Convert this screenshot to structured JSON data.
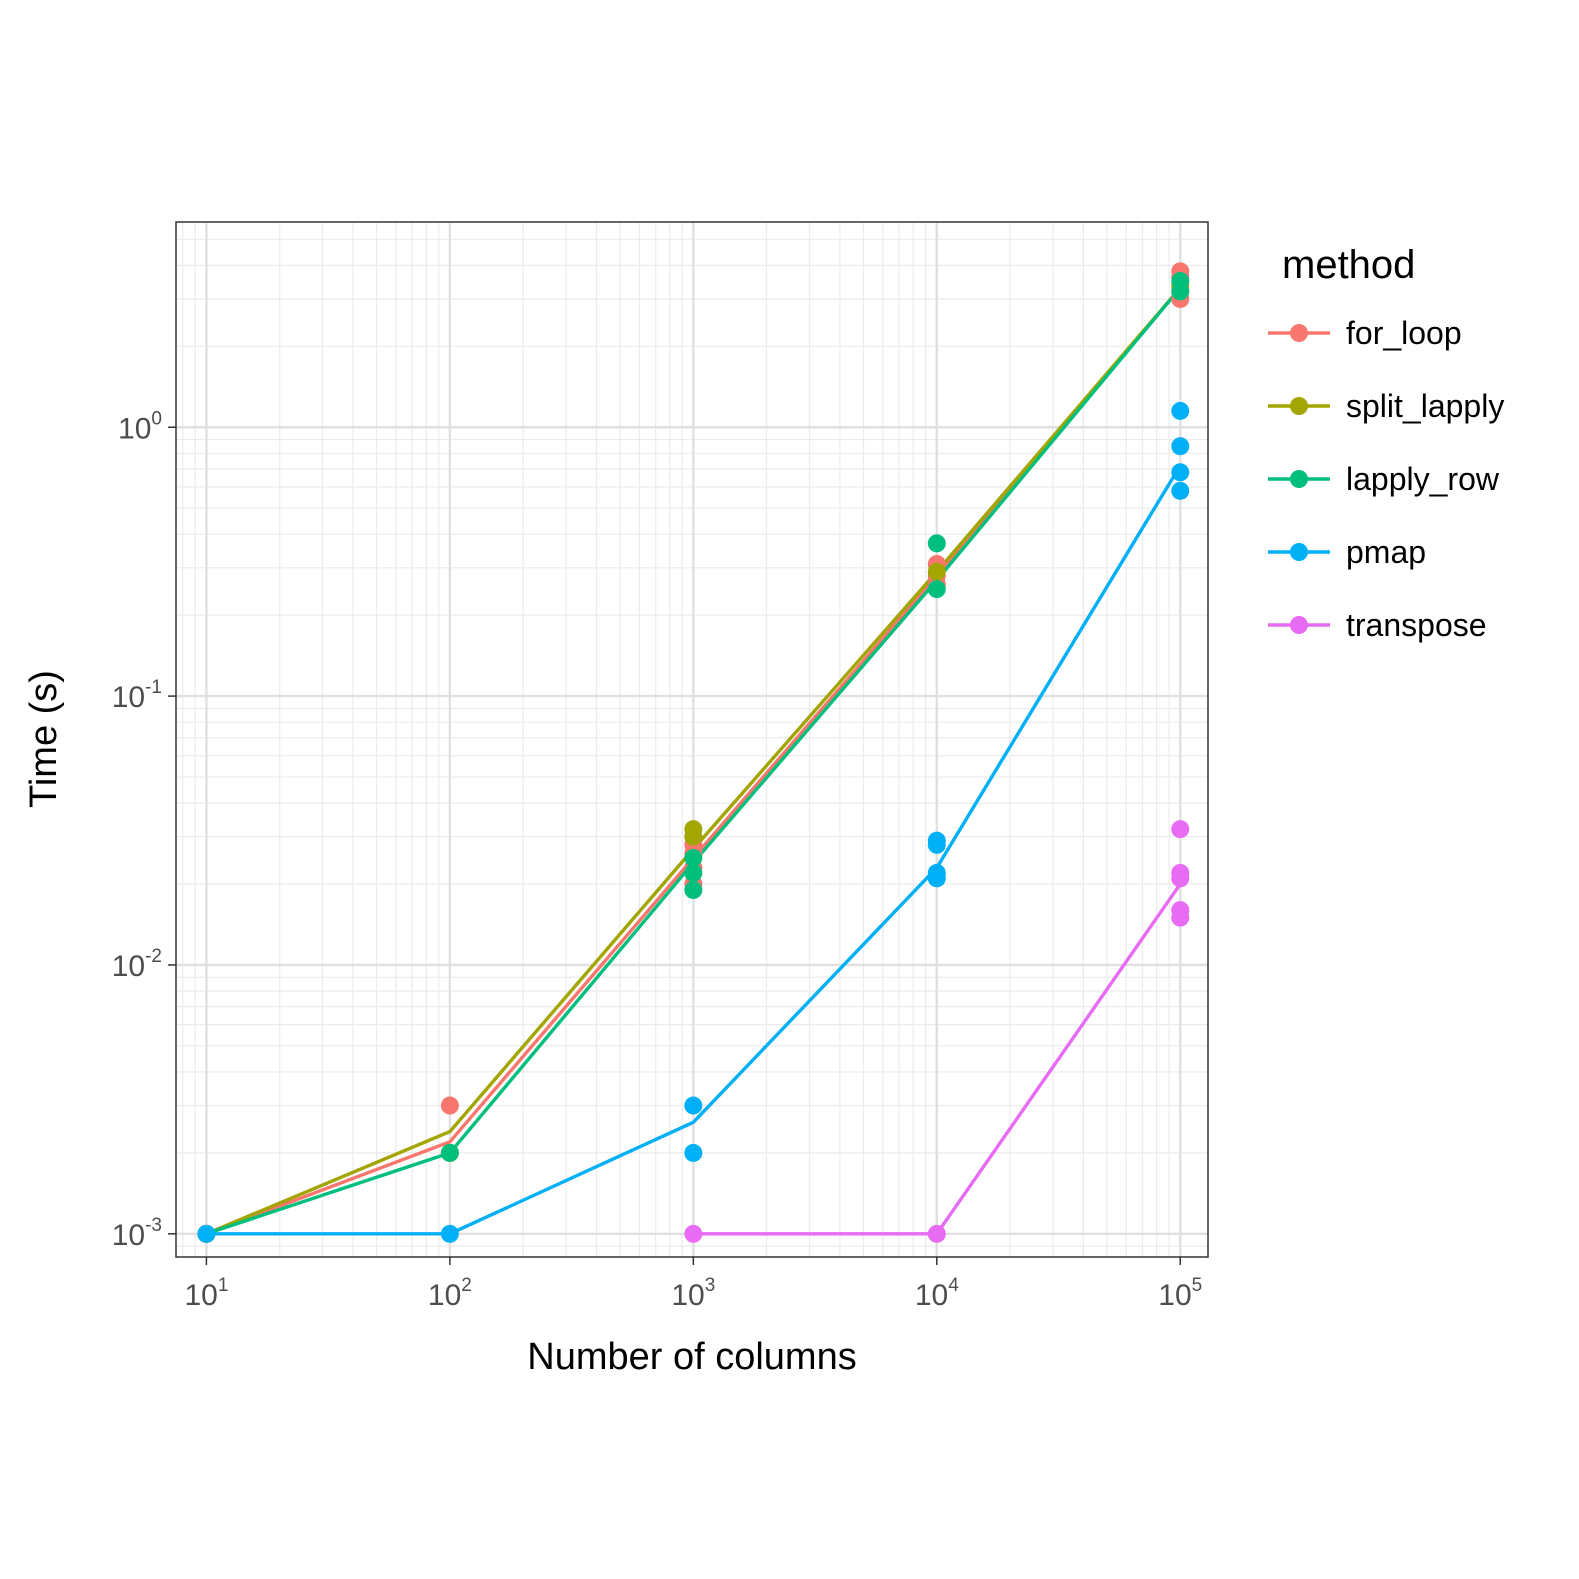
{
  "chart_data": {
    "type": "line",
    "xlabel": "Number of columns",
    "ylabel": "Time (s)",
    "x_scale": "log10",
    "y_scale": "log10",
    "x_ticks": [
      {
        "value": 10,
        "base": "10",
        "exp": "1"
      },
      {
        "value": 100,
        "base": "10",
        "exp": "2"
      },
      {
        "value": 1000,
        "base": "10",
        "exp": "3"
      },
      {
        "value": 10000,
        "base": "10",
        "exp": "4"
      },
      {
        "value": 100000,
        "base": "10",
        "exp": "5"
      }
    ],
    "y_ticks": [
      {
        "value": 0.001,
        "base": "10",
        "exp": "-3"
      },
      {
        "value": 0.01,
        "base": "10",
        "exp": "-2"
      },
      {
        "value": 0.1,
        "base": "10",
        "exp": "-1"
      },
      {
        "value": 1,
        "base": "10",
        "exp": "0"
      }
    ],
    "xlim": [
      7.5,
      130000
    ],
    "ylim": [
      0.00082,
      5.8
    ],
    "grid": true,
    "legend": {
      "title": "method",
      "position": "right"
    },
    "series": [
      {
        "name": "for_loop",
        "color": "#F8766D",
        "line": {
          "x": [
            10,
            100,
            1000,
            10000,
            100000
          ],
          "y": [
            0.001,
            0.0022,
            0.025,
            0.28,
            3.3
          ]
        },
        "points": {
          "x": [
            10,
            100,
            100,
            1000,
            1000,
            1000,
            1000,
            10000,
            10000,
            10000,
            100000,
            100000,
            100000,
            100000
          ],
          "y": [
            0.001,
            0.003,
            0.002,
            0.028,
            0.026,
            0.023,
            0.02,
            0.31,
            0.28,
            0.26,
            3.8,
            3.6,
            3.3,
            3.0
          ]
        }
      },
      {
        "name": "split_lapply",
        "color": "#A3A500",
        "line": {
          "x": [
            10,
            100,
            1000,
            10000,
            100000
          ],
          "y": [
            0.001,
            0.0024,
            0.027,
            0.29,
            3.3
          ]
        },
        "points": {
          "x": [
            10,
            100,
            1000,
            1000,
            10000,
            100000,
            100000
          ],
          "y": [
            0.001,
            0.002,
            0.032,
            0.03,
            0.29,
            3.4,
            3.2
          ]
        }
      },
      {
        "name": "lapply_row",
        "color": "#00BF7D",
        "line": {
          "x": [
            10,
            100,
            1000,
            10000,
            100000
          ],
          "y": [
            0.001,
            0.002,
            0.024,
            0.27,
            3.3
          ]
        },
        "points": {
          "x": [
            10,
            100,
            1000,
            1000,
            1000,
            10000,
            10000,
            100000,
            100000
          ],
          "y": [
            0.001,
            0.002,
            0.025,
            0.022,
            0.019,
            0.37,
            0.25,
            3.5,
            3.2
          ]
        }
      },
      {
        "name": "pmap",
        "color": "#00B0F6",
        "line": {
          "x": [
            10,
            100,
            1000,
            10000,
            100000
          ],
          "y": [
            0.001,
            0.001,
            0.0026,
            0.023,
            0.72
          ]
        },
        "points": {
          "x": [
            10,
            100,
            1000,
            1000,
            10000,
            10000,
            10000,
            10000,
            100000,
            100000,
            100000,
            100000
          ],
          "y": [
            0.001,
            0.001,
            0.003,
            0.002,
            0.029,
            0.028,
            0.022,
            0.021,
            1.15,
            0.85,
            0.68,
            0.58
          ]
        }
      },
      {
        "name": "transpose",
        "color": "#E76BF3",
        "line": {
          "x": [
            1000,
            10000,
            100000
          ],
          "y": [
            0.001,
            0.001,
            0.02
          ]
        },
        "points": {
          "x": [
            1000,
            10000,
            100000,
            100000,
            100000,
            100000,
            100000
          ],
          "y": [
            0.001,
            0.001,
            0.032,
            0.022,
            0.021,
            0.016,
            0.015
          ]
        }
      }
    ]
  }
}
